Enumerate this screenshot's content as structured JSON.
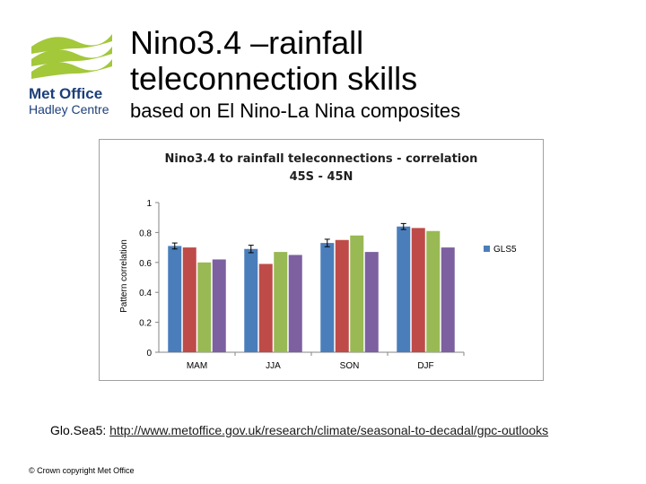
{
  "slide": {
    "title_line1": "Nino3.4 –rainfall",
    "title_line2": "teleconnection skills",
    "subtitle": "based on El Nino-La Nina composites",
    "logo_line1": "Met Office",
    "logo_line2": "Hadley Centre",
    "footer_label": "Glo.Sea5: ",
    "footer_url": "http://www.metoffice.gov.uk/research/climate/seasonal-to-decadal/gpc-outlooks",
    "copyright": "© Crown copyright   Met Office"
  },
  "colors": {
    "logo_green": "#a3c83a",
    "logo_blue": "#1c3f7a"
  },
  "chart_data": {
    "type": "bar",
    "title_line1": "Nino3.4 to rainfall teleconnections - correlation",
    "title_line2": "45S - 45N",
    "ylabel": "Pattern correlation",
    "xlabel": "",
    "ylim": [
      0,
      1
    ],
    "yticks": [
      "0",
      "0.2",
      "0.4",
      "0.6",
      "0.8",
      "1"
    ],
    "categories": [
      "MAM",
      "JJA",
      "SON",
      "DJF"
    ],
    "legend_position": "right",
    "grid": false,
    "series": [
      {
        "name": "GLS5",
        "color": "#4a7ebb",
        "values": [
          0.71,
          0.69,
          0.73,
          0.84
        ],
        "error": [
          0.02,
          0.025,
          0.025,
          0.02
        ]
      },
      {
        "name": "",
        "color": "#be4b48",
        "values": [
          0.7,
          0.59,
          0.75,
          0.83
        ]
      },
      {
        "name": "",
        "color": "#98b954",
        "values": [
          0.6,
          0.67,
          0.78,
          0.81
        ]
      },
      {
        "name": "",
        "color": "#7d60a0",
        "values": [
          0.62,
          0.65,
          0.67,
          0.7
        ]
      }
    ]
  }
}
